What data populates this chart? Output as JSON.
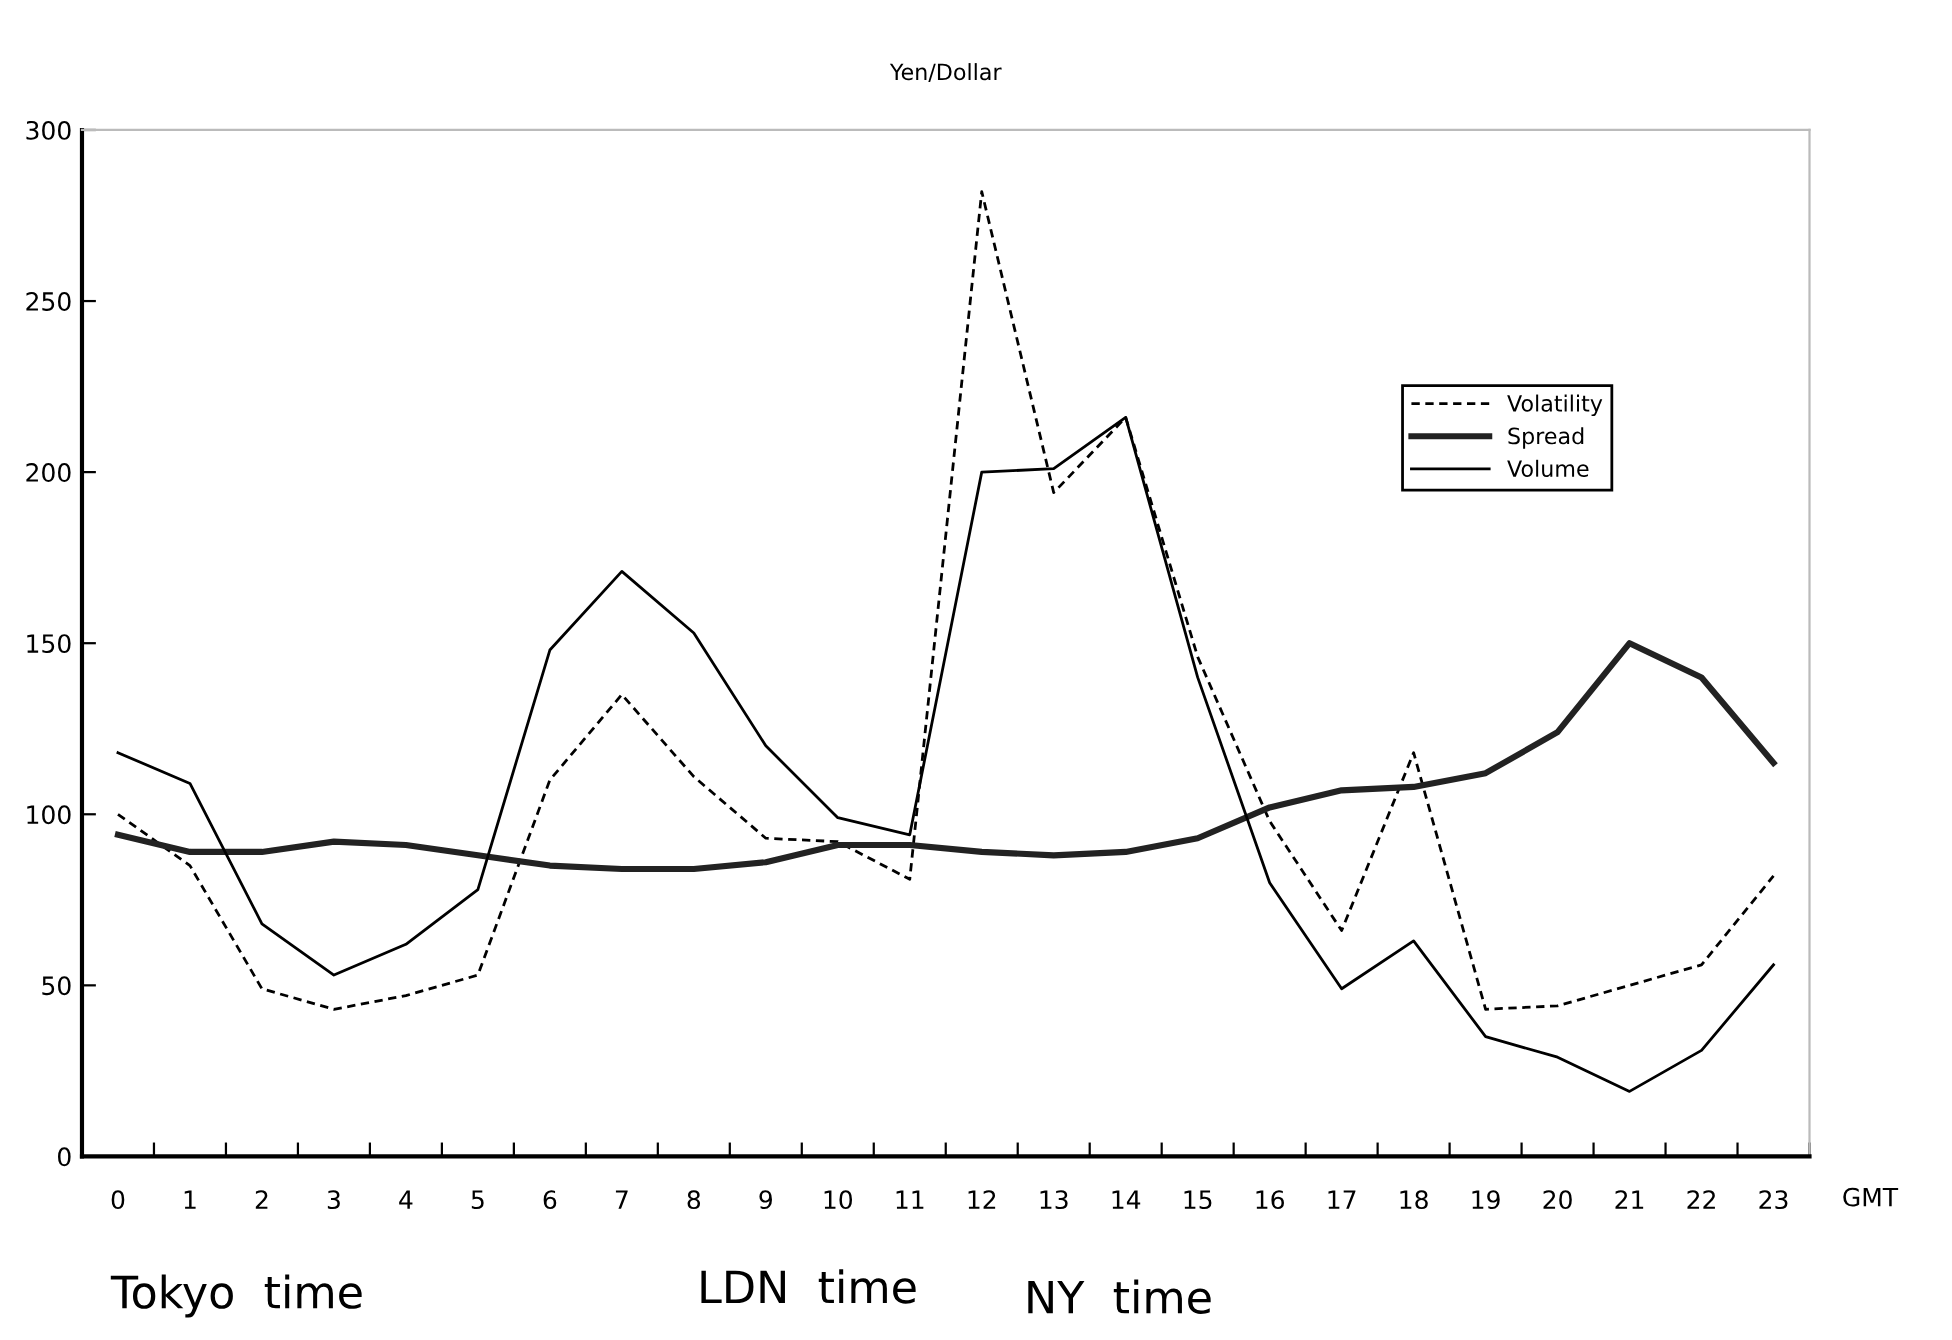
{
  "chart_data": {
    "type": "line",
    "title": "Yen/Dollar",
    "xlabel": "GMT",
    "categories": [
      "0",
      "1",
      "2",
      "3",
      "4",
      "5",
      "6",
      "7",
      "8",
      "9",
      "10",
      "11",
      "12",
      "13",
      "14",
      "15",
      "16",
      "17",
      "18",
      "19",
      "20",
      "21",
      "22",
      "23"
    ],
    "series": [
      {
        "name": "Volatility",
        "color": "#000000",
        "line_style": "dashed",
        "values": [
          100,
          85,
          49,
          43,
          47,
          53,
          110,
          135,
          111,
          93,
          92,
          81,
          282,
          194,
          216,
          146,
          98,
          66,
          118,
          43,
          44,
          50,
          56,
          82
        ]
      },
      {
        "name": "Spread",
        "color": "#222222",
        "line_style": "solid",
        "values": [
          94,
          89,
          89,
          92,
          91,
          88,
          85,
          84,
          84,
          86,
          91,
          91,
          89,
          88,
          89,
          93,
          102,
          107,
          108,
          112,
          124,
          150,
          140,
          115
        ]
      },
      {
        "name": "Volume",
        "color": "#000000",
        "line_style": "solid",
        "values": [
          118,
          109,
          68,
          53,
          62,
          78,
          148,
          171,
          153,
          120,
          99,
          94,
          200,
          201,
          216,
          140,
          80,
          49,
          63,
          35,
          29,
          19,
          31,
          56
        ]
      }
    ],
    "ylim": [
      0,
      300
    ],
    "yticks": [
      0,
      50,
      100,
      150,
      200,
      250,
      300
    ],
    "grid": false,
    "legend": "right",
    "marker": "none",
    "annotations": [
      "Tokyo  time",
      "LDN  time",
      "NY  time"
    ]
  }
}
